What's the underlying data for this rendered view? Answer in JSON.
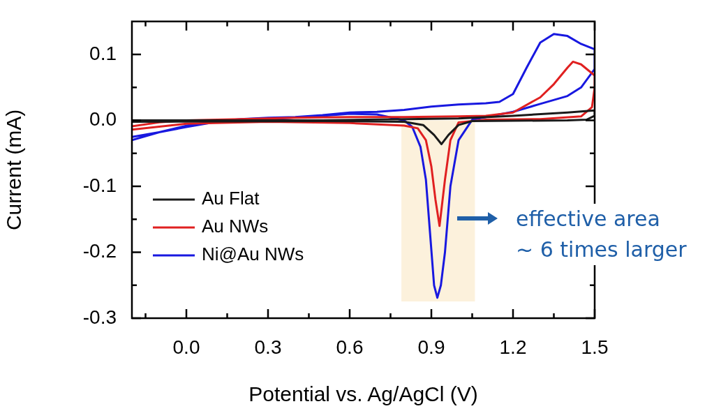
{
  "chart_data": {
    "type": "line",
    "xlabel": "Potential vs. Ag/AgCl (V)",
    "ylabel": "Current (mA)",
    "xlim": [
      -0.2,
      1.5
    ],
    "ylim": [
      -0.3,
      0.15
    ],
    "xticks": [
      {
        "value": -0.15,
        "label": null
      },
      {
        "value": 0,
        "label": "0.0"
      },
      {
        "value": 0.15,
        "label": null
      },
      0.3,
      {
        "value": 0.45,
        "label": null
      },
      0.6,
      {
        "value": 0.75,
        "label": null
      },
      0.9,
      {
        "value": 1.05,
        "label": null
      },
      1.2,
      {
        "value": 1.35,
        "label": null
      },
      1.5
    ],
    "yticks": [
      -0.3,
      {
        "value": -0.25,
        "label": null
      },
      -0.2,
      {
        "value": -0.15,
        "label": null
      },
      -0.1,
      {
        "value": -0.05,
        "label": null
      },
      {
        "value": 0,
        "label": "0.0"
      },
      {
        "value": 0.05,
        "label": null
      },
      0.1
    ],
    "legend": "bottom left",
    "marker": "none",
    "line_style": "solid",
    "bands": [
      {
        "axis": "x",
        "from": 0.79,
        "to": 1.06,
        "color": "#fcf1dc"
      }
    ],
    "annotations": [
      "effective area\n~ 6 times larger"
    ],
    "series": [
      {
        "name": "Au Flat",
        "color": "#1a1a1a",
        "x": [
          -0.2,
          0.5,
          1.0,
          1.2,
          1.4,
          1.5,
          1.5,
          1.47,
          1.4,
          1.05,
          1.0,
          0.963,
          0.937,
          0.91,
          0.87,
          0.8,
          0.5,
          -0.2
        ],
        "values": [
          0.0,
          0.0,
          0.003,
          0.007,
          0.012,
          0.015,
          0.007,
          0.001,
          0.0,
          -0.001,
          -0.007,
          -0.022,
          -0.036,
          -0.022,
          -0.007,
          -0.002,
          -0.001,
          -0.002
        ]
      },
      {
        "name": "Au NWs",
        "color": "#e02020",
        "x": [
          -0.2,
          -0.1,
          0,
          0.2,
          0.4,
          0.6,
          0.8,
          1.0,
          1.1,
          1.2,
          1.3,
          1.35,
          1.4,
          1.42,
          1.45,
          1.5,
          1.5,
          1.49,
          1.45,
          1.3,
          1.1,
          1.0,
          0.97,
          0.95,
          0.93,
          0.915,
          0.9,
          0.88,
          0.85,
          0.8,
          0.6,
          0.3,
          0,
          -0.2
        ],
        "values": [
          -0.009,
          -0.003,
          0.0,
          0.002,
          0.004,
          0.005,
          0.005,
          0.006,
          0.007,
          0.012,
          0.035,
          0.055,
          0.08,
          0.089,
          0.085,
          0.068,
          0.05,
          0.02,
          0.006,
          0.002,
          0.001,
          -0.003,
          -0.03,
          -0.09,
          -0.16,
          -0.12,
          -0.07,
          -0.03,
          -0.012,
          -0.008,
          -0.004,
          -0.002,
          -0.005,
          -0.014
        ]
      },
      {
        "name": "Ni@Au NWs",
        "color": "#1818e0",
        "x": [
          -0.2,
          -0.1,
          0,
          0.1,
          0.2,
          0.3,
          0.4,
          0.5,
          0.6,
          0.7,
          0.8,
          0.9,
          1.0,
          1.1,
          1.15,
          1.2,
          1.25,
          1.3,
          1.35,
          1.4,
          1.45,
          1.5,
          1.5,
          1.45,
          1.4,
          1.3,
          1.2,
          1.1,
          1.05,
          1.0,
          0.97,
          0.95,
          0.935,
          0.922,
          0.91,
          0.895,
          0.88,
          0.86,
          0.83,
          0.8,
          0.7,
          0.6,
          0.5,
          0.3,
          0.1,
          0,
          -0.1,
          -0.2
        ],
        "values": [
          -0.03,
          -0.018,
          -0.008,
          -0.002,
          0.002,
          0.004,
          0.005,
          0.008,
          0.012,
          0.013,
          0.016,
          0.021,
          0.024,
          0.026,
          0.028,
          0.04,
          0.08,
          0.118,
          0.131,
          0.128,
          0.116,
          0.108,
          0.078,
          0.05,
          0.037,
          0.025,
          0.013,
          0.005,
          0.001,
          -0.03,
          -0.1,
          -0.2,
          -0.25,
          -0.269,
          -0.25,
          -0.17,
          -0.09,
          -0.04,
          -0.01,
          0.0,
          0.009,
          0.01,
          0.007,
          0.002,
          -0.003,
          -0.01,
          -0.018,
          -0.025
        ]
      }
    ]
  }
}
